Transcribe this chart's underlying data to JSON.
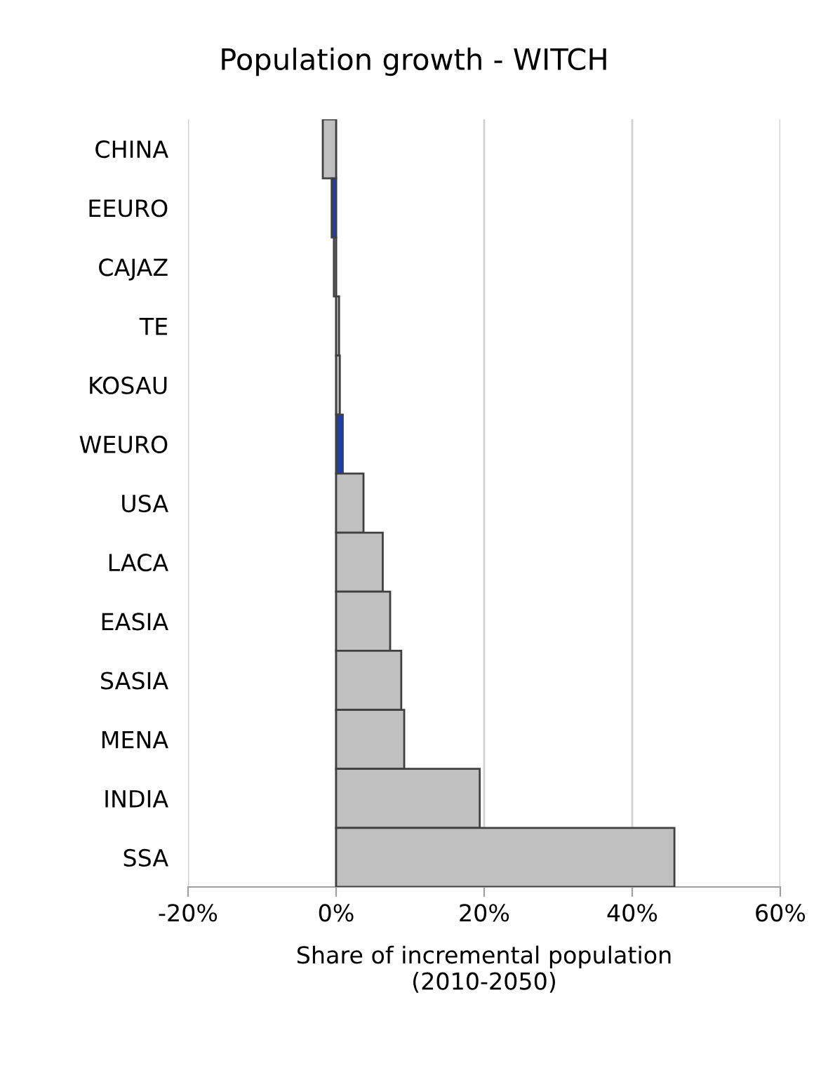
{
  "chart_data": {
    "type": "bar",
    "orientation": "horizontal",
    "title": "Population growth - WITCH",
    "xlabel": "Share of incremental population\n(2010-2050)",
    "categories": [
      "CHINA",
      "EEURO",
      "CAJAZ",
      "TE",
      "KOSAU",
      "WEURO",
      "USA",
      "LACA",
      "EASIA",
      "SASIA",
      "MENA",
      "INDIA",
      "SSA"
    ],
    "values": [
      -1.8,
      -0.6,
      -0.3,
      0.4,
      0.5,
      0.9,
      3.7,
      6.3,
      7.3,
      8.8,
      9.2,
      19.4,
      45.7
    ],
    "colors": [
      "#c0c0c0",
      "#1f3fa8",
      "#c0c0c0",
      "#c0c0c0",
      "#c0c0c0",
      "#1f3fa8",
      "#c0c0c0",
      "#c0c0c0",
      "#c0c0c0",
      "#c0c0c0",
      "#c0c0c0",
      "#c0c0c0",
      "#c0c0c0"
    ],
    "xlim": [
      -20,
      60
    ],
    "xticks": [
      {
        "value": -20,
        "label": "-20%"
      },
      {
        "value": 0,
        "label": "0%"
      },
      {
        "value": 20,
        "label": "20%"
      },
      {
        "value": 40,
        "label": "40%"
      },
      {
        "value": 60,
        "label": "60%"
      }
    ],
    "grid": "x"
  }
}
